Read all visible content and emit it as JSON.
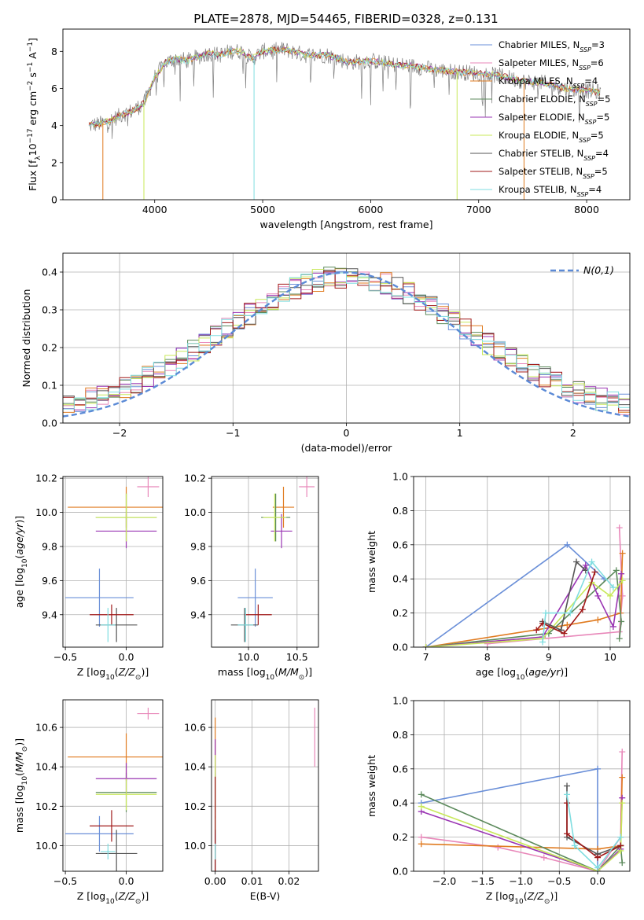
{
  "figure_title": "PLATE=2878, MJD=54465, FIBERID=0328, z=0.131",
  "series": [
    {
      "name": "Chabrier MILES, N_SSP=3",
      "color": "#6a8fd8"
    },
    {
      "name": "Salpeter MILES, N_SSP=6",
      "color": "#e887b9"
    },
    {
      "name": "Kroupa MILES, N_SSP=4",
      "color": "#e07b20"
    },
    {
      "name": "Chabrier ELODIE, N_SSP=5",
      "color": "#5c8a5c"
    },
    {
      "name": "Salpeter ELODIE, N_SSP=5",
      "color": "#9a35b3"
    },
    {
      "name": "Kroupa ELODIE, N_SSP=5",
      "color": "#c8e85a"
    },
    {
      "name": "Chabrier STELIB, N_SSP=4",
      "color": "#555555"
    },
    {
      "name": "Salpeter STELIB, N_SSP=5",
      "color": "#a01818"
    },
    {
      "name": "Kroupa STELIB, N_SSP=4",
      "color": "#7fdde0"
    }
  ],
  "chart_data": [
    {
      "id": "spectrum",
      "type": "line",
      "xlabel": "wavelength [Angstrom, rest frame]",
      "ylabel": "Flux [f_λ 10^-17 erg cm^-2 s^-1 A^-1]",
      "xlim": [
        3150,
        8400
      ],
      "ylim": [
        0,
        9.2
      ],
      "xticks": [
        4000,
        5000,
        6000,
        7000,
        8000
      ],
      "yticks": [
        0,
        2,
        4,
        6,
        8
      ],
      "grid": false,
      "legend": "right",
      "x": [
        3400,
        3500,
        3600,
        3700,
        3800,
        3900,
        4000,
        4100,
        4200,
        4300,
        4400,
        4500,
        4600,
        4700,
        4800,
        4900,
        5000,
        5200,
        5400,
        5600,
        5800,
        6000,
        6200,
        6400,
        6600,
        6800,
        7000,
        7200,
        7400,
        7600,
        7800,
        8000,
        8100
      ],
      "y": [
        4.0,
        4.1,
        4.3,
        4.6,
        4.8,
        5.2,
        6.6,
        7.4,
        7.6,
        7.5,
        7.7,
        7.9,
        7.8,
        8.0,
        8.0,
        7.6,
        8.0,
        8.1,
        7.8,
        7.8,
        7.4,
        7.5,
        7.3,
        7.2,
        7.0,
        6.9,
        6.8,
        6.7,
        6.4,
        6.3,
        6.0,
        5.9,
        5.8
      ]
    },
    {
      "id": "residual_hist",
      "type": "bar",
      "xlabel": "(data-model)/error",
      "ylabel": "Normed distribution",
      "xlim": [
        -2.5,
        2.5
      ],
      "ylim": [
        0,
        0.45
      ],
      "xticks": [
        -2,
        -1,
        0,
        1,
        2
      ],
      "yticks": [
        0.0,
        0.1,
        0.2,
        0.3,
        0.4
      ],
      "grid": true,
      "legend": "top-right",
      "reference_curve": "N(0,1)",
      "bin_edges_start": -2.5,
      "bin_width": 0.1
    },
    {
      "id": "age_vs_Z",
      "type": "scatter",
      "xlabel": "Z [log10(Z/Z⊙)]",
      "ylabel": "age [log10(age/yr)]",
      "xlim": [
        -0.52,
        0.3
      ],
      "ylim": [
        9.21,
        10.21
      ],
      "xticks": [
        -0.5,
        0.0
      ],
      "yticks": [
        9.4,
        9.6,
        9.8,
        10.0,
        10.2
      ],
      "grid": true,
      "points": [
        {
          "s": 0,
          "x": -0.22,
          "y": 9.5,
          "xerr": 0.28,
          "yerr": 0.17
        },
        {
          "s": 1,
          "x": 0.18,
          "y": 10.15,
          "xerr": 0.09,
          "yerr": 0.06
        },
        {
          "s": 2,
          "x": 0.0,
          "y": 10.03,
          "xerr": 0.48,
          "yerr": 0.12
        },
        {
          "s": 3,
          "x": 0.0,
          "y": 9.97,
          "xerr": 0.25,
          "yerr": 0.14
        },
        {
          "s": 4,
          "x": 0.0,
          "y": 9.89,
          "xerr": 0.25,
          "yerr": 0.1
        },
        {
          "s": 5,
          "x": 0.0,
          "y": 9.97,
          "xerr": 0.25,
          "yerr": 0.14
        },
        {
          "s": 6,
          "x": -0.08,
          "y": 9.34,
          "xerr": 0.17,
          "yerr": 0.1
        },
        {
          "s": 7,
          "x": -0.12,
          "y": 9.4,
          "xerr": 0.18,
          "yerr": 0.06
        },
        {
          "s": 8,
          "x": -0.15,
          "y": 9.34,
          "xerr": 0.06,
          "yerr": 0.1
        }
      ]
    },
    {
      "id": "age_vs_mass",
      "type": "scatter",
      "xlabel": "mass [log10(M/M⊙)]",
      "ylabel": "",
      "xlim": [
        9.62,
        10.72
      ],
      "ylim": [
        9.21,
        10.21
      ],
      "xticks": [
        10.0,
        10.5
      ],
      "yticks": [
        9.4,
        9.6,
        9.8,
        10.0,
        10.2
      ],
      "grid": true,
      "points": [
        {
          "s": 0,
          "x": 10.07,
          "y": 9.5,
          "xerr": 0.18,
          "yerr": 0.17
        },
        {
          "s": 1,
          "x": 10.6,
          "y": 10.15,
          "xerr": 0.08,
          "yerr": 0.06
        },
        {
          "s": 2,
          "x": 10.36,
          "y": 10.03,
          "xerr": 0.11,
          "yerr": 0.12
        },
        {
          "s": 3,
          "x": 10.28,
          "y": 9.97,
          "xerr": 0.15,
          "yerr": 0.14
        },
        {
          "s": 4,
          "x": 10.34,
          "y": 9.89,
          "xerr": 0.11,
          "yerr": 0.1
        },
        {
          "s": 5,
          "x": 10.27,
          "y": 9.97,
          "xerr": 0.12,
          "yerr": 0.14
        },
        {
          "s": 6,
          "x": 9.96,
          "y": 9.34,
          "xerr": 0.14,
          "yerr": 0.1
        },
        {
          "s": 7,
          "x": 10.1,
          "y": 9.4,
          "xerr": 0.14,
          "yerr": 0.06
        },
        {
          "s": 8,
          "x": 9.97,
          "y": 9.34,
          "xerr": 0.08,
          "yerr": 0.1
        }
      ]
    },
    {
      "id": "weight_vs_age",
      "type": "line",
      "xlabel": "age [log10(age/yr)]",
      "ylabel": "mass weight",
      "xlim": [
        6.8,
        10.32
      ],
      "ylim": [
        0,
        1
      ],
      "xticks": [
        7,
        8,
        9,
        10
      ],
      "yticks": [
        0.0,
        0.2,
        0.4,
        0.6,
        0.8,
        1.0
      ],
      "grid": true,
      "lines": [
        {
          "s": 0,
          "x": [
            7.0,
            9.3,
            9.9
          ],
          "y": [
            0.0,
            0.6,
            0.4
          ]
        },
        {
          "s": 1,
          "x": [
            8.0,
            10.15,
            10.2,
            10.15
          ],
          "y": [
            0.02,
            0.09,
            0.3,
            0.7
          ]
        },
        {
          "s": 2,
          "x": [
            7.0,
            9.3,
            9.8,
            10.17,
            10.2
          ],
          "y": [
            0.0,
            0.13,
            0.16,
            0.2,
            0.55
          ]
        },
        {
          "s": 3,
          "x": [
            7.0,
            9.0,
            10.1,
            10.18,
            10.15
          ],
          "y": [
            0.0,
            0.08,
            0.45,
            0.15,
            0.05
          ]
        },
        {
          "s": 4,
          "x": [
            7.0,
            8.9,
            9.6,
            9.8,
            10.05,
            10.18
          ],
          "y": [
            0.0,
            0.06,
            0.48,
            0.3,
            0.12,
            0.43
          ]
        },
        {
          "s": 5,
          "x": [
            7.0,
            8.9,
            9.7,
            10.0,
            10.2
          ],
          "y": [
            0.0,
            0.05,
            0.38,
            0.3,
            0.39
          ]
        },
        {
          "s": 6,
          "x": [
            8.9,
            9.2,
            9.45,
            9.6
          ],
          "y": [
            0.15,
            0.1,
            0.5,
            0.45
          ]
        },
        {
          "s": 7,
          "x": [
            8.8,
            8.9,
            9.25,
            9.55,
            9.75
          ],
          "y": [
            0.1,
            0.14,
            0.08,
            0.22,
            0.44
          ]
        },
        {
          "s": 8,
          "x": [
            8.9,
            8.95,
            9.35,
            9.7,
            10.05
          ],
          "y": [
            0.03,
            0.2,
            0.2,
            0.5,
            0.35
          ]
        }
      ]
    },
    {
      "id": "mass_vs_Z",
      "type": "scatter",
      "xlabel": "Z [log10(Z/Z⊙)]",
      "ylabel": "mass [log10(M/M⊙)]",
      "xlim": [
        -0.52,
        0.3
      ],
      "ylim": [
        9.87,
        10.74
      ],
      "xticks": [
        -0.5,
        0.0
      ],
      "yticks": [
        10.0,
        10.2,
        10.4,
        10.6
      ],
      "grid": true,
      "points": [
        {
          "s": 0,
          "x": -0.22,
          "y": 10.06,
          "xerr": 0.28,
          "yerr": 0.09
        },
        {
          "s": 1,
          "x": 0.18,
          "y": 10.67,
          "xerr": 0.09,
          "yerr": 0.03
        },
        {
          "s": 2,
          "x": 0.0,
          "y": 10.45,
          "xerr": 0.48,
          "yerr": 0.12
        },
        {
          "s": 3,
          "x": 0.0,
          "y": 10.27,
          "xerr": 0.25,
          "yerr": 0.1
        },
        {
          "s": 4,
          "x": 0.0,
          "y": 10.34,
          "xerr": 0.25,
          "yerr": 0.08
        },
        {
          "s": 5,
          "x": 0.0,
          "y": 10.26,
          "xerr": 0.25,
          "yerr": 0.08
        },
        {
          "s": 6,
          "x": -0.08,
          "y": 9.96,
          "xerr": 0.17,
          "yerr": 0.12
        },
        {
          "s": 7,
          "x": -0.12,
          "y": 10.1,
          "xerr": 0.18,
          "yerr": 0.08
        },
        {
          "s": 8,
          "x": -0.15,
          "y": 9.97,
          "xerr": 0.06,
          "yerr": 0.04
        }
      ]
    },
    {
      "id": "mass_vs_EBV",
      "type": "scatter",
      "xlabel": "E(B-V)",
      "ylabel": "",
      "xlim": [
        -0.001,
        0.028
      ],
      "ylim": [
        9.87,
        10.74
      ],
      "xticks": [
        0.0,
        0.01,
        0.02
      ],
      "yticks": [
        10.0,
        10.2,
        10.4,
        10.6
      ],
      "grid": true,
      "points": [
        {
          "s": 0,
          "x": 0.0,
          "y": 10.06,
          "xerr": 0,
          "yerr": 0.09
        },
        {
          "s": 1,
          "x": 0.027,
          "y": 10.55,
          "xerr": 0,
          "yerr": 0.15
        },
        {
          "s": 2,
          "x": 0.0,
          "y": 10.45,
          "xerr": 0,
          "yerr": 0.2
        },
        {
          "s": 3,
          "x": 0.0,
          "y": 10.27,
          "xerr": 0,
          "yerr": 0.1
        },
        {
          "s": 4,
          "x": 0.0,
          "y": 10.34,
          "xerr": 0,
          "yerr": 0.2
        },
        {
          "s": 5,
          "x": 0.0,
          "y": 10.26,
          "xerr": 0,
          "yerr": 0.2
        },
        {
          "s": 6,
          "x": 0.0,
          "y": 9.96,
          "xerr": 0,
          "yerr": 0.12
        },
        {
          "s": 7,
          "x": 0.0,
          "y": 10.1,
          "xerr": 0,
          "yerr": 0.25
        },
        {
          "s": 8,
          "x": 0.0,
          "y": 9.97,
          "xerr": 0,
          "yerr": 0.04
        }
      ]
    },
    {
      "id": "weight_vs_Z",
      "type": "line",
      "xlabel": "Z [log10(Z/Z⊙)]",
      "ylabel": "mass weight",
      "xlim": [
        -2.4,
        0.42
      ],
      "ylim": [
        0,
        1
      ],
      "xticks": [
        -2.0,
        -1.5,
        -1.0,
        -0.5,
        0.0
      ],
      "yticks": [
        0.0,
        0.2,
        0.4,
        0.6,
        0.8,
        1.0
      ],
      "grid": true,
      "lines": [
        {
          "s": 0,
          "x": [
            -2.3,
            0.0,
            0.0
          ],
          "y": [
            0.4,
            0.6,
            0.0
          ]
        },
        {
          "s": 1,
          "x": [
            -2.3,
            -1.3,
            -0.7,
            0.0,
            0.3,
            0.32
          ],
          "y": [
            0.2,
            0.14,
            0.08,
            0.0,
            0.2,
            0.7
          ]
        },
        {
          "s": 2,
          "x": [
            -2.3,
            0.0,
            0.3,
            0.32
          ],
          "y": [
            0.16,
            0.13,
            0.15,
            0.55
          ]
        },
        {
          "s": 3,
          "x": [
            -2.3,
            0.0,
            0.3,
            0.32
          ],
          "y": [
            0.45,
            0.0,
            0.15,
            0.05
          ]
        },
        {
          "s": 4,
          "x": [
            -2.3,
            0.0,
            0.3,
            0.32
          ],
          "y": [
            0.35,
            0.0,
            0.13,
            0.43
          ]
        },
        {
          "s": 5,
          "x": [
            -2.3,
            0.0,
            0.3,
            0.32
          ],
          "y": [
            0.38,
            0.0,
            0.12,
            0.4
          ]
        },
        {
          "s": 6,
          "x": [
            -0.4,
            -0.4,
            0.0,
            0.3
          ],
          "y": [
            0.5,
            0.2,
            0.1,
            0.15
          ]
        },
        {
          "s": 7,
          "x": [
            -0.4,
            -0.4,
            0.0,
            0.3
          ],
          "y": [
            0.4,
            0.22,
            0.08,
            0.15
          ]
        },
        {
          "s": 8,
          "x": [
            -0.4,
            -0.3,
            0.0,
            0.3
          ],
          "y": [
            0.45,
            0.15,
            0.02,
            0.2
          ]
        }
      ]
    }
  ]
}
